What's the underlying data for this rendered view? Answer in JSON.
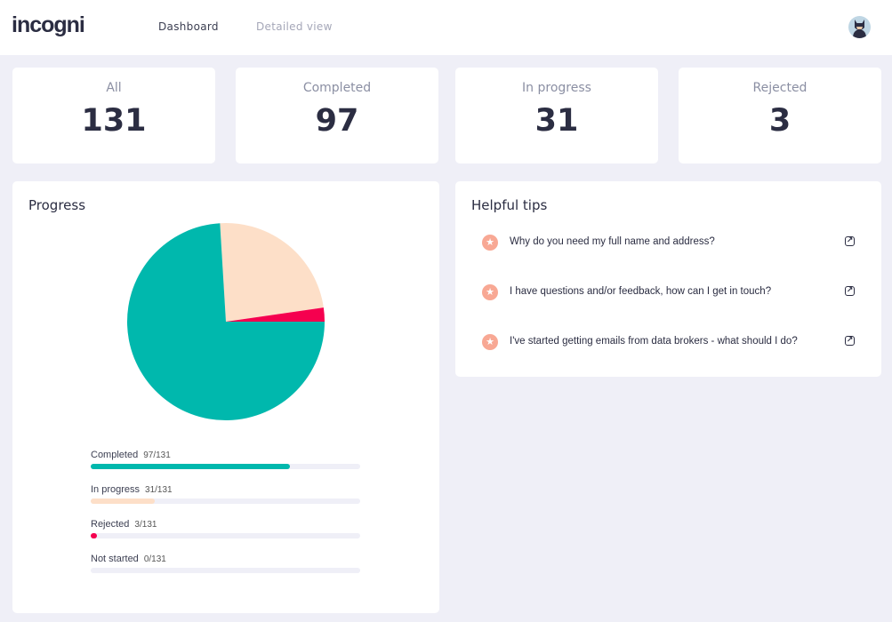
{
  "header": {
    "logo": "incogni",
    "nav": [
      {
        "label": "Dashboard",
        "active": true
      },
      {
        "label": "Detailed view",
        "active": false
      }
    ],
    "avatar_icon": "user-avatar"
  },
  "stats": [
    {
      "label": "All",
      "value": "131"
    },
    {
      "label": "Completed",
      "value": "97"
    },
    {
      "label": "In progress",
      "value": "31"
    },
    {
      "label": "Rejected",
      "value": "3"
    }
  ],
  "progress": {
    "title": "Progress",
    "total": 131,
    "items": [
      {
        "label": "Completed",
        "count": "97/131",
        "value": 97,
        "color": "#00b8ad"
      },
      {
        "label": "In progress",
        "count": "31/131",
        "value": 31,
        "color": "#fddfc8"
      },
      {
        "label": "Rejected",
        "count": "3/131",
        "value": 3,
        "color": "#f5004f"
      },
      {
        "label": "Not started",
        "count": "0/131",
        "value": 0,
        "color": "#c8c8d8"
      }
    ]
  },
  "tips": {
    "title": "Helpful tips",
    "items": [
      "Why do you need my full name and address?",
      "I have questions and/or feedback, how can I get in touch?",
      "I've started getting emails from data brokers - what should I do?"
    ]
  }
}
